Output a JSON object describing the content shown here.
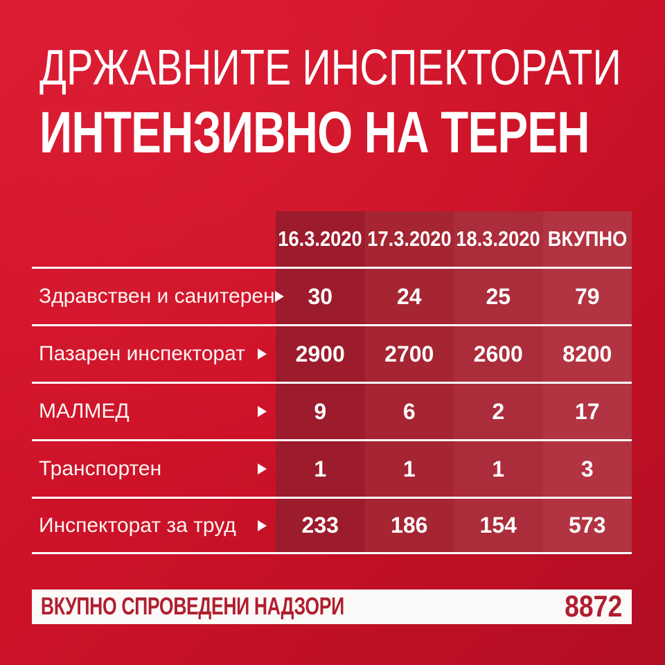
{
  "title": {
    "line1": "ДРЖАВНИТЕ ИНСПЕКТОРАТИ",
    "line2": "ИНТЕНЗИВНО НА ТЕРЕН"
  },
  "chart_data": {
    "type": "table",
    "title": "ДРЖАВНИТЕ ИНСПЕКТОРАТИ — ИНТЕНЗИВНО НА ТЕРЕН",
    "columns": [
      "16.3.2020",
      "17.3.2020",
      "18.3.2020",
      "ВКУПНО"
    ],
    "rows": [
      {
        "label": "Здравствен и санитерен",
        "values": [
          "30",
          "24",
          "25",
          "79"
        ]
      },
      {
        "label": "Пазарен инспекторат",
        "values": [
          "2900",
          "2700",
          "2600",
          "8200"
        ]
      },
      {
        "label": "МАЛМЕД",
        "values": [
          "9",
          "6",
          "2",
          "17"
        ]
      },
      {
        "label": "Транспортен",
        "values": [
          "1",
          "1",
          "1",
          "3"
        ]
      },
      {
        "label": "Инспекторат за труд",
        "values": [
          "233",
          "186",
          "154",
          "573"
        ]
      }
    ],
    "total_label": "ВКУПНО СПРОВЕДЕНИ НАДЗОРИ",
    "total": "8872"
  },
  "colors": {
    "background_top_left": "#d7172e",
    "background_bottom_right": "#b20e23",
    "column_shades": [
      "#9c1b2c",
      "#a52533",
      "#ab2c3a",
      "#b23442"
    ],
    "divider": "#ffffff",
    "text": "#ffffff",
    "summary_background": "#fcfaf8",
    "summary_text": "#b01e2f"
  }
}
